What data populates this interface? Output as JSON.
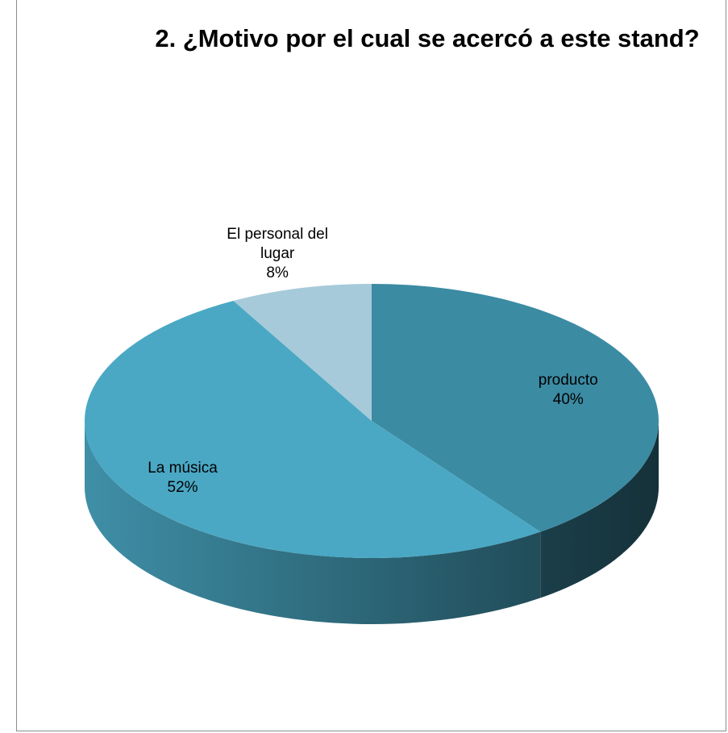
{
  "chart_data": {
    "type": "pie3d",
    "title": "2. ¿Motivo por el cual se acercó a este stand?",
    "categories": [
      "producto",
      "La música",
      "El personal del lugar"
    ],
    "values": [
      40,
      52,
      8
    ],
    "value_labels": [
      "40%",
      "52%",
      "8%"
    ],
    "colors": [
      "#3b8ba3",
      "#4aa8c4",
      "#a6cad9"
    ]
  }
}
